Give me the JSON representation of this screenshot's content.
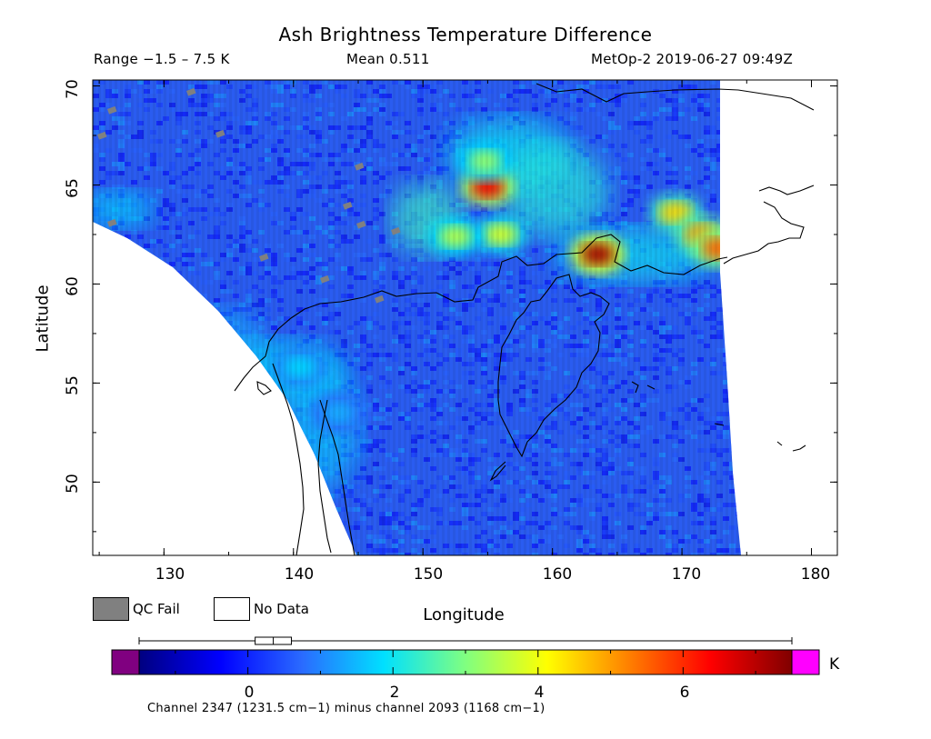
{
  "title": "Ash Brightness Temperature Difference",
  "range_text": "Range −1.5 – 7.5 K",
  "mean_text": "Mean 0.511",
  "satellite_text": "MetOp-2 2019-06-27 09:49Z",
  "map": {
    "x_axis": {
      "label": "Longitude",
      "ticks": [
        "130",
        "140",
        "150",
        "160",
        "170",
        "180"
      ],
      "range": [
        124.5,
        182
      ]
    },
    "y_axis": {
      "label": "Latitude",
      "ticks": [
        "50",
        "55",
        "60",
        "65",
        "70"
      ],
      "range": [
        46.3,
        70.3
      ]
    },
    "background_color": "#2a5cf0",
    "missing_color": "#ffffff",
    "qc_fail_color": "#808080",
    "coastline_color": "#000000",
    "hotspots": [
      {
        "lon": 155,
        "lat": 64.9,
        "value": 6.5
      },
      {
        "lon": 156,
        "lat": 62.5,
        "value": 3.8
      },
      {
        "lon": 154.8,
        "lat": 66.2,
        "value": 3.2
      },
      {
        "lon": 163.5,
        "lat": 61.5,
        "value": 7.2
      },
      {
        "lon": 169.5,
        "lat": 63.6,
        "value": 4.5
      },
      {
        "lon": 171.5,
        "lat": 62.5,
        "value": 5.0
      },
      {
        "lon": 172.8,
        "lat": 61.8,
        "value": 5.5
      },
      {
        "lon": 152.5,
        "lat": 62.4,
        "value": 3.5
      },
      {
        "lon": 140.5,
        "lat": 55.8,
        "value": 1.8
      },
      {
        "lon": 143.5,
        "lat": 53.5,
        "value": 1.4
      }
    ]
  },
  "legend": {
    "qc_fail": "QC Fail",
    "no_data": "No Data"
  },
  "colorbar": {
    "unit": "K",
    "ticks": [
      "0",
      "2",
      "4",
      "6"
    ],
    "range": [
      -1.5,
      7.5
    ],
    "underflow_color": "#800080",
    "overflow_color": "#ff00ff",
    "stops": [
      "#000080",
      "#0000ff",
      "#2a6bff",
      "#00e0ff",
      "#80ff80",
      "#ffff00",
      "#ff8000",
      "#ff0000",
      "#800000"
    ],
    "box": {
      "min": -1.5,
      "q1": 0.1,
      "median": 0.35,
      "q3": 0.6,
      "max": 7.5
    },
    "caption": "Channel 2347 (1231.5 cm−1) minus channel 2093 (1168 cm−1)"
  }
}
